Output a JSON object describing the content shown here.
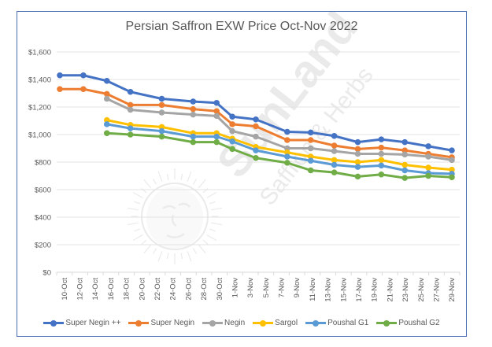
{
  "chart_data": {
    "type": "line",
    "title": "Persian Saffron EXW Price Oct-Nov 2022",
    "xlabel": "",
    "ylabel": "",
    "ylim": [
      0,
      1600
    ],
    "y_ticks": [
      "$0",
      "$200",
      "$400",
      "$600",
      "$800",
      "$1,000",
      "$1,200",
      "$1,400",
      "$1,600"
    ],
    "y_tick_values": [
      0,
      200,
      400,
      600,
      800,
      1000,
      1200,
      1400,
      1600
    ],
    "x_tick_labels": [
      "10-Oct",
      "12-Oct",
      "14-Oct",
      "16-Oct",
      "18-Oct",
      "20-Oct",
      "22-Oct",
      "24-Oct",
      "26-Oct",
      "28-Oct",
      "30-Oct",
      "1-Nov",
      "3-Nov",
      "5-Nov",
      "7-Nov",
      "9-Nov",
      "11-Nov",
      "13-Nov",
      "15-Nov",
      "17-Nov",
      "19-Nov",
      "21-Nov",
      "23-Nov",
      "25-Nov",
      "27-Nov",
      "29-Nov"
    ],
    "grid": true,
    "legend_position": "bottom",
    "x": [
      "10-Oct",
      "13-Oct",
      "16-Oct",
      "19-Oct",
      "23-Oct",
      "27-Oct",
      "30-Oct",
      "1-Nov",
      "4-Nov",
      "8-Nov",
      "11-Nov",
      "14-Nov",
      "17-Nov",
      "20-Nov",
      "23-Nov",
      "26-Nov",
      "29-Nov"
    ],
    "x_day_offset": [
      0,
      3,
      6,
      9,
      13,
      17,
      20,
      22,
      25,
      29,
      32,
      35,
      38,
      41,
      44,
      47,
      50
    ],
    "series": [
      {
        "name": "Super Negin ++",
        "color": "#4472c4",
        "values": [
          1430,
          1430,
          1390,
          1310,
          1260,
          1240,
          1230,
          1130,
          1110,
          1020,
          1015,
          990,
          945,
          965,
          945,
          915,
          885
        ]
      },
      {
        "name": "Super Negin",
        "color": "#ed7d31",
        "values": [
          1330,
          1330,
          1295,
          1215,
          1215,
          1185,
          1170,
          1075,
          1060,
          960,
          960,
          920,
          895,
          905,
          885,
          860,
          835
        ]
      },
      {
        "name": "Negin",
        "color": "#a5a5a5",
        "values": [
          null,
          null,
          1260,
          1180,
          1160,
          1145,
          1135,
          1025,
          985,
          900,
          900,
          880,
          860,
          860,
          855,
          840,
          815
        ]
      },
      {
        "name": "Sargol",
        "color": "#ffc000",
        "values": [
          null,
          null,
          1105,
          1070,
          1055,
          1010,
          1010,
          970,
          910,
          870,
          840,
          815,
          800,
          815,
          780,
          760,
          745
        ]
      },
      {
        "name": "Poushal G1",
        "color": "#5b9bd5",
        "values": [
          null,
          null,
          1075,
          1045,
          1025,
          985,
          985,
          950,
          885,
          840,
          810,
          780,
          765,
          775,
          740,
          720,
          715
        ]
      },
      {
        "name": "Poushal G2",
        "color": "#70ad47",
        "values": [
          null,
          null,
          1010,
          1000,
          985,
          945,
          945,
          895,
          830,
          795,
          740,
          725,
          695,
          710,
          685,
          700,
          690
        ]
      }
    ]
  },
  "watermark": {
    "brand": "SunLand",
    "tagline": "Saffron & Herbs"
  }
}
